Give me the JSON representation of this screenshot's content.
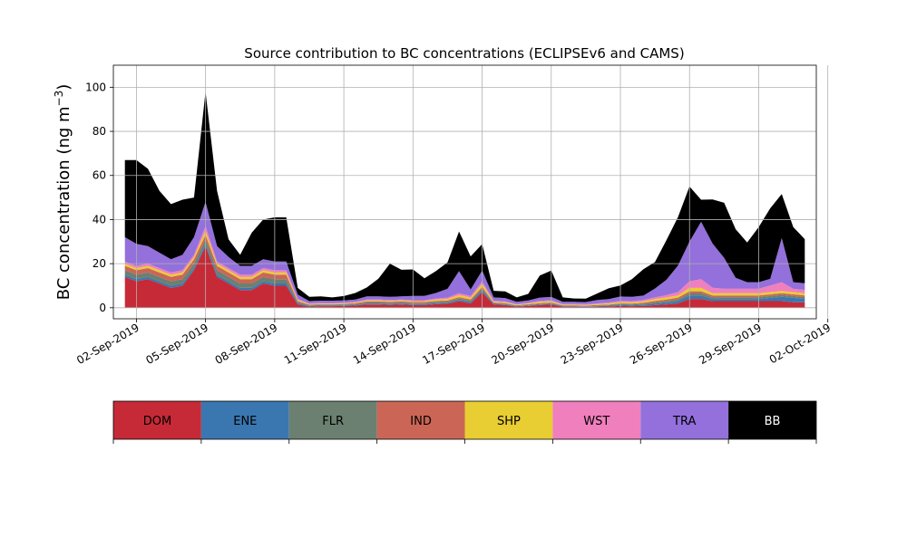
{
  "chart_data": {
    "type": "area",
    "stacked": true,
    "title": "Source contribution to BC concentrations (ECLIPSEv6 and CAMS)",
    "ylabel": "BC concentration (ng m⁻³)",
    "xlabel": "",
    "ylim": [
      -5,
      110
    ],
    "xlim": [
      "2019-09-01T00:00",
      "2019-10-01T12:00"
    ],
    "grid": true,
    "yticks": [
      0,
      20,
      40,
      60,
      80,
      100
    ],
    "xticks": [
      "02-Sep-2019",
      "05-Sep-2019",
      "08-Sep-2019",
      "11-Sep-2019",
      "14-Sep-2019",
      "17-Sep-2019",
      "20-Sep-2019",
      "23-Sep-2019",
      "26-Sep-2019",
      "29-Sep-2019",
      "02-Oct-2019"
    ],
    "x": [
      "2019-09-01T12:00",
      "2019-09-02T00:00",
      "2019-09-02T12:00",
      "2019-09-03T00:00",
      "2019-09-03T12:00",
      "2019-09-04T00:00",
      "2019-09-04T12:00",
      "2019-09-05T00:00",
      "2019-09-05T12:00",
      "2019-09-06T00:00",
      "2019-09-06T12:00",
      "2019-09-07T00:00",
      "2019-09-07T12:00",
      "2019-09-08T00:00",
      "2019-09-08T12:00",
      "2019-09-09T00:00",
      "2019-09-09T12:00",
      "2019-09-10T00:00",
      "2019-09-10T12:00",
      "2019-09-11T00:00",
      "2019-09-11T12:00",
      "2019-09-12T00:00",
      "2019-09-12T12:00",
      "2019-09-13T00:00",
      "2019-09-13T12:00",
      "2019-09-14T00:00",
      "2019-09-14T12:00",
      "2019-09-15T00:00",
      "2019-09-15T12:00",
      "2019-09-16T00:00",
      "2019-09-16T12:00",
      "2019-09-17T00:00",
      "2019-09-17T12:00",
      "2019-09-18T00:00",
      "2019-09-18T12:00",
      "2019-09-19T00:00",
      "2019-09-19T12:00",
      "2019-09-20T00:00",
      "2019-09-20T12:00",
      "2019-09-21T00:00",
      "2019-09-21T12:00",
      "2019-09-22T00:00",
      "2019-09-22T12:00",
      "2019-09-23T00:00",
      "2019-09-23T12:00",
      "2019-09-24T00:00",
      "2019-09-24T12:00",
      "2019-09-25T00:00",
      "2019-09-25T12:00",
      "2019-09-26T00:00",
      "2019-09-26T12:00",
      "2019-09-27T00:00",
      "2019-09-27T12:00",
      "2019-09-28T00:00",
      "2019-09-28T12:00",
      "2019-09-29T00:00",
      "2019-09-29T12:00",
      "2019-09-30T00:00",
      "2019-09-30T12:00",
      "2019-10-01T00:00"
    ],
    "series": [
      {
        "name": "DOM",
        "color": "#c62a37",
        "values": [
          14,
          12,
          13,
          11,
          9,
          10,
          17,
          28,
          14,
          11,
          8,
          8,
          11,
          10,
          10,
          1.5,
          0.5,
          0.7,
          0.7,
          0.8,
          1.0,
          1.5,
          1.5,
          1.3,
          1.5,
          1.2,
          1.2,
          1.6,
          1.8,
          3,
          2,
          7,
          1.5,
          1.2,
          0.5,
          0.8,
          1.2,
          1.5,
          0.5,
          0.5,
          0.4,
          0.5,
          0.6,
          0.8,
          0.7,
          0.8,
          1.2,
          1.5,
          2,
          4,
          4,
          3,
          3,
          3,
          3,
          3,
          3,
          3,
          2.5,
          2.5
        ]
      },
      {
        "name": "ENE",
        "color": "#3a77b0",
        "values": [
          1,
          1,
          1,
          1,
          1,
          1,
          1,
          1,
          1,
          1,
          1,
          1,
          1,
          1,
          1,
          0.5,
          0.3,
          0.3,
          0.3,
          0.3,
          0.3,
          0.4,
          0.4,
          0.4,
          0.4,
          0.4,
          0.4,
          0.5,
          0.5,
          0.6,
          0.6,
          0.8,
          0.3,
          0.3,
          0.2,
          0.2,
          0.3,
          0.3,
          0.2,
          0.2,
          0.2,
          0.2,
          0.3,
          0.4,
          0.4,
          0.5,
          0.7,
          0.8,
          1,
          1.5,
          1.5,
          1,
          1,
          1,
          1,
          1,
          1.5,
          2,
          2,
          1.5
        ]
      },
      {
        "name": "FLR",
        "color": "#6b8070",
        "values": [
          2,
          2,
          2,
          2,
          2,
          2,
          2,
          2,
          2,
          2,
          2,
          2,
          2,
          2,
          2,
          0.5,
          0.3,
          0.3,
          0.3,
          0.3,
          0.4,
          0.5,
          0.5,
          0.5,
          0.5,
          0.5,
          0.5,
          0.5,
          0.5,
          0.6,
          0.6,
          0.8,
          0.3,
          0.3,
          0.2,
          0.3,
          0.3,
          0.3,
          0.2,
          0.2,
          0.2,
          0.3,
          0.3,
          0.4,
          0.4,
          0.5,
          0.6,
          0.7,
          0.8,
          1,
          1,
          0.8,
          0.8,
          0.8,
          0.8,
          0.8,
          0.8,
          0.8,
          0.8,
          0.8
        ]
      },
      {
        "name": "IND",
        "color": "#cb6656",
        "values": [
          2,
          2,
          2,
          2,
          2,
          2,
          2,
          2,
          2,
          2,
          2,
          2,
          2,
          2,
          2,
          0.5,
          0.3,
          0.3,
          0.3,
          0.3,
          0.4,
          0.5,
          0.5,
          0.5,
          0.5,
          0.5,
          0.5,
          0.5,
          0.5,
          0.6,
          0.6,
          0.8,
          0.3,
          0.3,
          0.2,
          0.3,
          0.3,
          0.3,
          0.2,
          0.2,
          0.2,
          0.3,
          0.3,
          0.4,
          0.4,
          0.5,
          0.6,
          0.7,
          0.8,
          1,
          1,
          0.8,
          0.8,
          0.8,
          0.8,
          0.8,
          0.8,
          0.8,
          0.8,
          0.8
        ]
      },
      {
        "name": "SHP",
        "color": "#e8cd33",
        "values": [
          1,
          1,
          1,
          1,
          1,
          1,
          1,
          2,
          1,
          1,
          1,
          1,
          1,
          1,
          1,
          0.5,
          0.3,
          0.3,
          0.3,
          0.3,
          0.3,
          0.4,
          0.4,
          0.4,
          0.4,
          0.4,
          0.4,
          0.6,
          0.7,
          1,
          0.8,
          1.5,
          0.4,
          0.4,
          0.3,
          0.4,
          0.6,
          0.6,
          0.3,
          0.3,
          0.3,
          0.4,
          0.5,
          0.6,
          0.6,
          0.6,
          0.8,
          1,
          1,
          1.5,
          1.5,
          1,
          1,
          1,
          1,
          1,
          1,
          1,
          1,
          1
        ]
      },
      {
        "name": "WST",
        "color": "#f07fbe",
        "values": [
          1,
          1,
          1,
          1,
          1,
          1,
          1,
          2,
          1,
          1,
          1,
          1,
          1,
          1,
          1,
          0.5,
          0.3,
          0.3,
          0.3,
          0.3,
          0.3,
          0.4,
          0.4,
          0.4,
          0.4,
          0.4,
          0.4,
          0.5,
          0.6,
          0.8,
          0.7,
          1,
          0.4,
          0.4,
          0.3,
          0.3,
          0.4,
          0.4,
          0.3,
          0.3,
          0.3,
          0.3,
          0.4,
          0.5,
          0.5,
          0.6,
          0.8,
          1,
          1.5,
          3,
          4,
          2.5,
          2,
          2,
          2,
          2,
          3,
          4,
          1.5,
          1.5
        ]
      },
      {
        "name": "TRA",
        "color": "#9370db",
        "values": [
          11,
          10,
          8,
          7,
          6,
          7,
          8,
          11,
          7,
          5,
          4,
          4,
          4,
          4,
          4,
          2,
          1,
          1,
          1,
          1,
          1,
          1.5,
          1.5,
          1.5,
          1.5,
          2,
          2,
          2.5,
          4,
          10,
          3,
          5,
          1.5,
          1.5,
          1,
          1,
          1.5,
          1.5,
          1,
          1,
          1,
          1.5,
          1.5,
          2,
          2,
          2,
          4,
          7,
          12,
          18,
          26,
          20,
          14,
          5,
          3,
          3,
          3,
          20,
          3,
          3
        ]
      },
      {
        "name": "BB",
        "color": "#000000",
        "values": [
          35,
          38,
          35,
          28,
          25,
          25,
          18,
          50,
          25,
          8,
          5,
          15,
          18,
          20,
          20,
          3,
          2,
          2,
          1.5,
          2,
          3,
          4,
          8,
          15,
          12,
          12,
          8,
          10,
          12,
          18,
          15,
          12,
          3,
          3,
          2,
          3,
          10,
          12,
          2,
          1.5,
          1.5,
          3,
          5,
          5,
          8,
          12,
          12,
          18,
          22,
          25,
          10,
          20,
          25,
          22,
          18,
          25,
          32,
          20,
          25,
          20
        ]
      }
    ]
  },
  "colorbar": {
    "labels": [
      "DOM",
      "ENE",
      "FLR",
      "IND",
      "SHP",
      "WST",
      "TRA",
      "BB"
    ],
    "colors": [
      "#c62a37",
      "#3a77b0",
      "#6b8070",
      "#cb6656",
      "#e8cd33",
      "#f07fbe",
      "#9370db",
      "#000000"
    ],
    "text_colors": [
      "#000000",
      "#000000",
      "#000000",
      "#000000",
      "#000000",
      "#000000",
      "#000000",
      "#ffffff"
    ]
  }
}
